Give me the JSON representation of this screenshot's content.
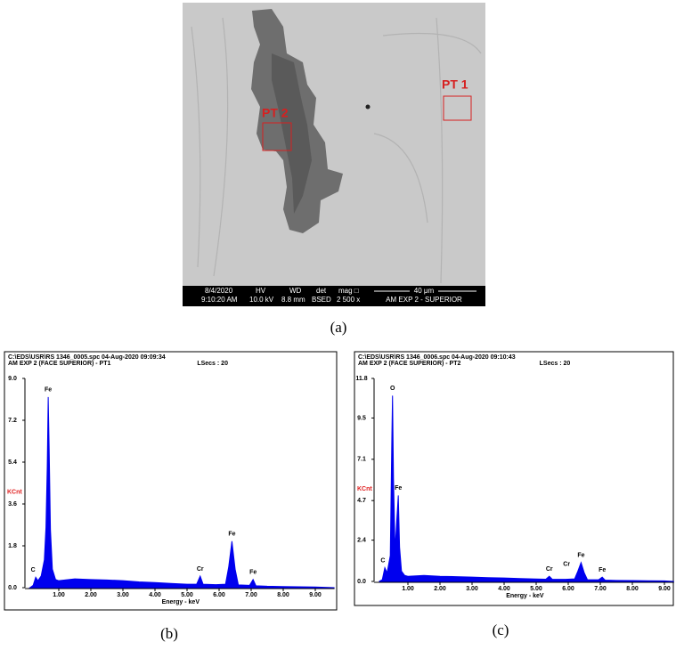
{
  "image": {
    "labels": [
      "PT 1",
      "PT 2"
    ],
    "info": [
      "8/4/2020",
      "9:10:20 AM",
      "HV",
      "10.0 kV",
      "WD",
      "8.8 mm",
      "det",
      "BSED",
      "mag □",
      "2 500 x",
      "40 μm",
      "AM EXP 2 - SUPERIOR"
    ]
  },
  "captions": [
    "(a)",
    "(b)",
    "(c)"
  ],
  "chart_data": [
    {
      "type": "area",
      "header": [
        "C:\\EDS\\USR\\RS 1346_0005.spc  04-Aug-2020 09:09:34",
        "AM EXP 2 (FACE SUPERIOR) - PT1"
      ],
      "lsecs": "LSecs : 20",
      "ylabel": "KCnt",
      "xlabel": "Energy - keV",
      "color": "#0000ee",
      "xlim": [
        0,
        9.6
      ],
      "ylim": [
        0,
        9
      ],
      "xticks": [
        {
          "value": 1,
          "label": "1.00"
        },
        {
          "value": 2,
          "label": "2.00"
        },
        {
          "value": 3,
          "label": "3.00"
        },
        {
          "value": 4,
          "label": "4.00"
        },
        {
          "value": 5,
          "label": "5.00"
        },
        {
          "value": 6,
          "label": "6.00"
        },
        {
          "value": 7,
          "label": "7.00"
        },
        {
          "value": 8,
          "label": "8.00"
        },
        {
          "value": 9,
          "label": "9.00"
        }
      ],
      "yticks": [
        {
          "value": 0,
          "label": "0.0"
        },
        1.8,
        3.6,
        5.4,
        7.2,
        {
          "value": 9,
          "label": "9.0"
        }
      ],
      "x": [
        0.1,
        0.2,
        0.28,
        0.35,
        0.45,
        0.55,
        0.6,
        0.64,
        0.67,
        0.7,
        0.74,
        0.8,
        0.9,
        1.0,
        1.5,
        2.0,
        2.5,
        3.0,
        3.5,
        4.0,
        4.5,
        5.0,
        5.3,
        5.41,
        5.5,
        5.9,
        6.2,
        6.3,
        6.4,
        6.5,
        6.6,
        6.95,
        7.06,
        7.15,
        7.5,
        8.0,
        8.5,
        9.0,
        9.6
      ],
      "values": [
        0,
        0.1,
        0.45,
        0.3,
        0.5,
        1.2,
        2.6,
        5.2,
        8.2,
        6.0,
        2.5,
        0.8,
        0.35,
        0.3,
        0.38,
        0.35,
        0.33,
        0.3,
        0.25,
        0.22,
        0.18,
        0.15,
        0.15,
        0.5,
        0.15,
        0.13,
        0.15,
        0.9,
        2.0,
        0.8,
        0.12,
        0.1,
        0.35,
        0.08,
        0.06,
        0.05,
        0.04,
        0.03,
        0
      ],
      "annotations": [
        {
          "text": "C",
          "x": 0.2,
          "y": 0.45
        },
        {
          "text": "Fe",
          "x": 0.67,
          "y": 8.2
        },
        {
          "text": "Cr",
          "x": 5.41,
          "y": 0.5
        },
        {
          "text": "Fe",
          "x": 6.4,
          "y": 2.0
        },
        {
          "text": "Fe",
          "x": 7.06,
          "y": 0.35
        }
      ]
    },
    {
      "type": "area",
      "header": [
        "C:\\EDS\\USR\\RS 1346_0006.spc  04-Aug-2020 09:10:43",
        "AM EXP 2 (FACE SUPERIOR) - PT2"
      ],
      "lsecs": "LSecs : 20",
      "ylabel": "KCnt",
      "xlabel": "Energy - keV",
      "color": "#0000ee",
      "xlim": [
        0,
        9.3
      ],
      "ylim": [
        0,
        11.8
      ],
      "xticks": [
        {
          "value": 1,
          "label": "1.00"
        },
        {
          "value": 2,
          "label": "2.00"
        },
        {
          "value": 3,
          "label": "3.00"
        },
        {
          "value": 4,
          "label": "4.00"
        },
        {
          "value": 5,
          "label": "5.00"
        },
        {
          "value": 6,
          "label": "6.00"
        },
        {
          "value": 7,
          "label": "7.00"
        },
        {
          "value": 8,
          "label": "8.00"
        },
        {
          "value": 9,
          "label": "9.00"
        }
      ],
      "yticks": [
        {
          "value": 0,
          "label": "0.0"
        },
        2.4,
        4.7,
        7.1,
        9.5,
        11.8
      ],
      "x": [
        0.1,
        0.2,
        0.28,
        0.35,
        0.45,
        0.5,
        0.52,
        0.55,
        0.6,
        0.65,
        0.7,
        0.74,
        0.8,
        0.9,
        1.0,
        1.5,
        2.0,
        2.5,
        3.0,
        3.5,
        4.0,
        4.5,
        5.0,
        5.3,
        5.41,
        5.5,
        5.9,
        6.2,
        6.3,
        6.4,
        6.5,
        6.6,
        6.95,
        7.06,
        7.15,
        7.5,
        8.0,
        8.5,
        9.0,
        9.3
      ],
      "values": [
        0,
        0.1,
        0.8,
        0.5,
        1.5,
        8.5,
        10.8,
        6.0,
        1.8,
        3.5,
        5.0,
        2.0,
        0.6,
        0.35,
        0.3,
        0.35,
        0.3,
        0.28,
        0.25,
        0.22,
        0.2,
        0.17,
        0.14,
        0.13,
        0.3,
        0.13,
        0.12,
        0.15,
        0.6,
        1.1,
        0.5,
        0.1,
        0.1,
        0.25,
        0.08,
        0.06,
        0.05,
        0.04,
        0.03,
        0
      ],
      "annotations": [
        {
          "text": "C",
          "x": 0.22,
          "y": 0.8
        },
        {
          "text": "O",
          "x": 0.52,
          "y": 10.8
        },
        {
          "text": "Fe",
          "x": 0.7,
          "y": 5.0
        },
        {
          "text": "Cr",
          "x": 5.41,
          "y": 0.3
        },
        {
          "text": "Cr",
          "x": 5.95,
          "y": 0.6
        },
        {
          "text": "Fe",
          "x": 6.4,
          "y": 1.1
        },
        {
          "text": "Fe",
          "x": 7.06,
          "y": 0.25
        }
      ]
    }
  ]
}
